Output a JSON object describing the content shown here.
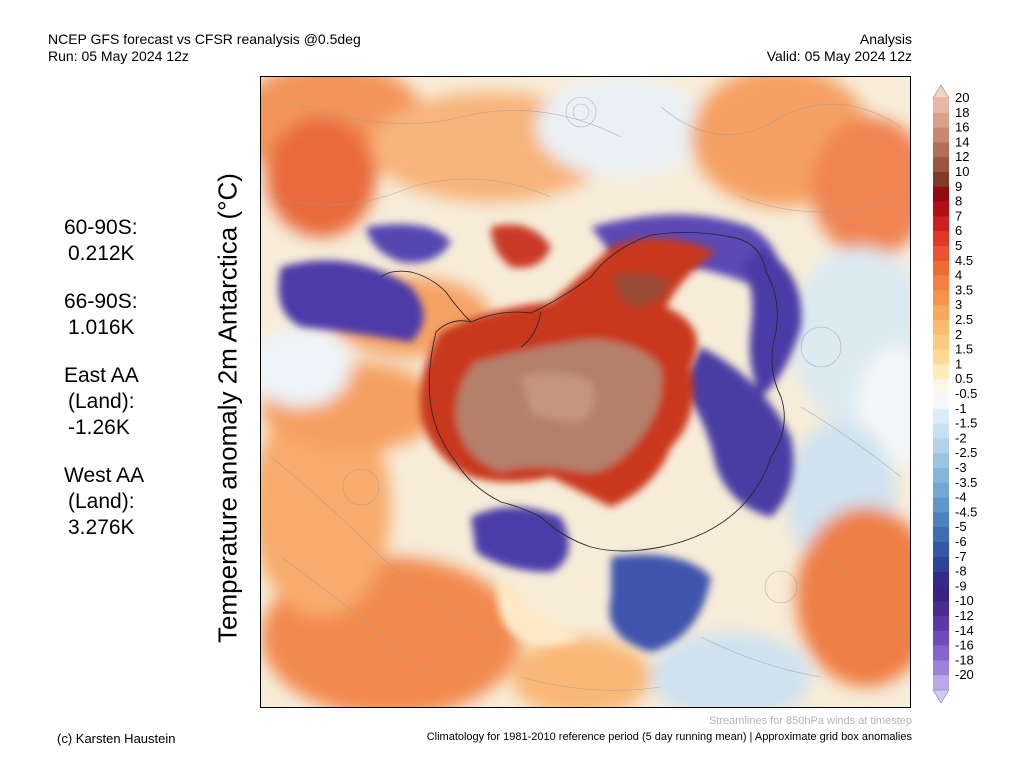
{
  "header": {
    "title_line1": "NCEP GFS forecast vs CFSR reanalysis @0.5deg",
    "title_line2": "Run: 05 May 2024 12z",
    "right_line1": "Analysis",
    "right_line2": "Valid: 05 May 2024 12z"
  },
  "y_label": "Temperature anomaly 2m Antarctica (°C)",
  "stats": [
    {
      "lines": [
        "60-90S:",
        "0.212K"
      ]
    },
    {
      "lines": [
        "66-90S:",
        "1.016K"
      ]
    },
    {
      "lines": [
        "East AA",
        "(Land):",
        "-1.26K"
      ]
    },
    {
      "lines": [
        "West AA",
        "(Land):",
        "3.276K"
      ]
    }
  ],
  "colorbar": {
    "labels": [
      "20",
      "18",
      "16",
      "14",
      "12",
      "10",
      "9",
      "8",
      "7",
      "6",
      "5",
      "4.5",
      "4",
      "3.5",
      "3",
      "2.5",
      "2",
      "1.5",
      "1",
      "0.5",
      "-0.5",
      "-1",
      "-1.5",
      "-2",
      "-2.5",
      "-3",
      "-3.5",
      "-4",
      "-4.5",
      "-5",
      "-6",
      "-7",
      "-8",
      "-9",
      "-10",
      "-12",
      "-14",
      "-16",
      "-18",
      "-20"
    ],
    "colors": [
      "#e9b7a4",
      "#d9a08a",
      "#c98670",
      "#b26e58",
      "#9b5541",
      "#7f3a2a",
      "#8e0c12",
      "#b20e16",
      "#cc1f1f",
      "#de3a27",
      "#e9532f",
      "#f06a36",
      "#f47f40",
      "#f7944c",
      "#f9a85c",
      "#fbbb6e",
      "#fcca80",
      "#fdda96",
      "#feecbd",
      "#fbf6e6",
      "#f4f8fb",
      "#dcedf7",
      "#c7e1f1",
      "#b0d3ea",
      "#9bc5e2",
      "#86b7db",
      "#72a8d3",
      "#5f97ca",
      "#4b82bf",
      "#3d6db3",
      "#3458a5",
      "#2e4496",
      "#332c87",
      "#3b2383",
      "#4a2c93",
      "#5a3aa6",
      "#6d4cbb",
      "#8364cc",
      "#9d82dc",
      "#bba8ea"
    ],
    "top_triangle_color": "#f6d2c4",
    "bottom_triangle_color": "#d4c6f2"
  },
  "footer": {
    "credit": "(c) Karsten Haustein",
    "climatology": "Climatology for 1981-2010 reference period (5 day running mean) | Approximate grid box anomalies",
    "streamlines": "Streamlines for 850hPa winds at timestep"
  }
}
